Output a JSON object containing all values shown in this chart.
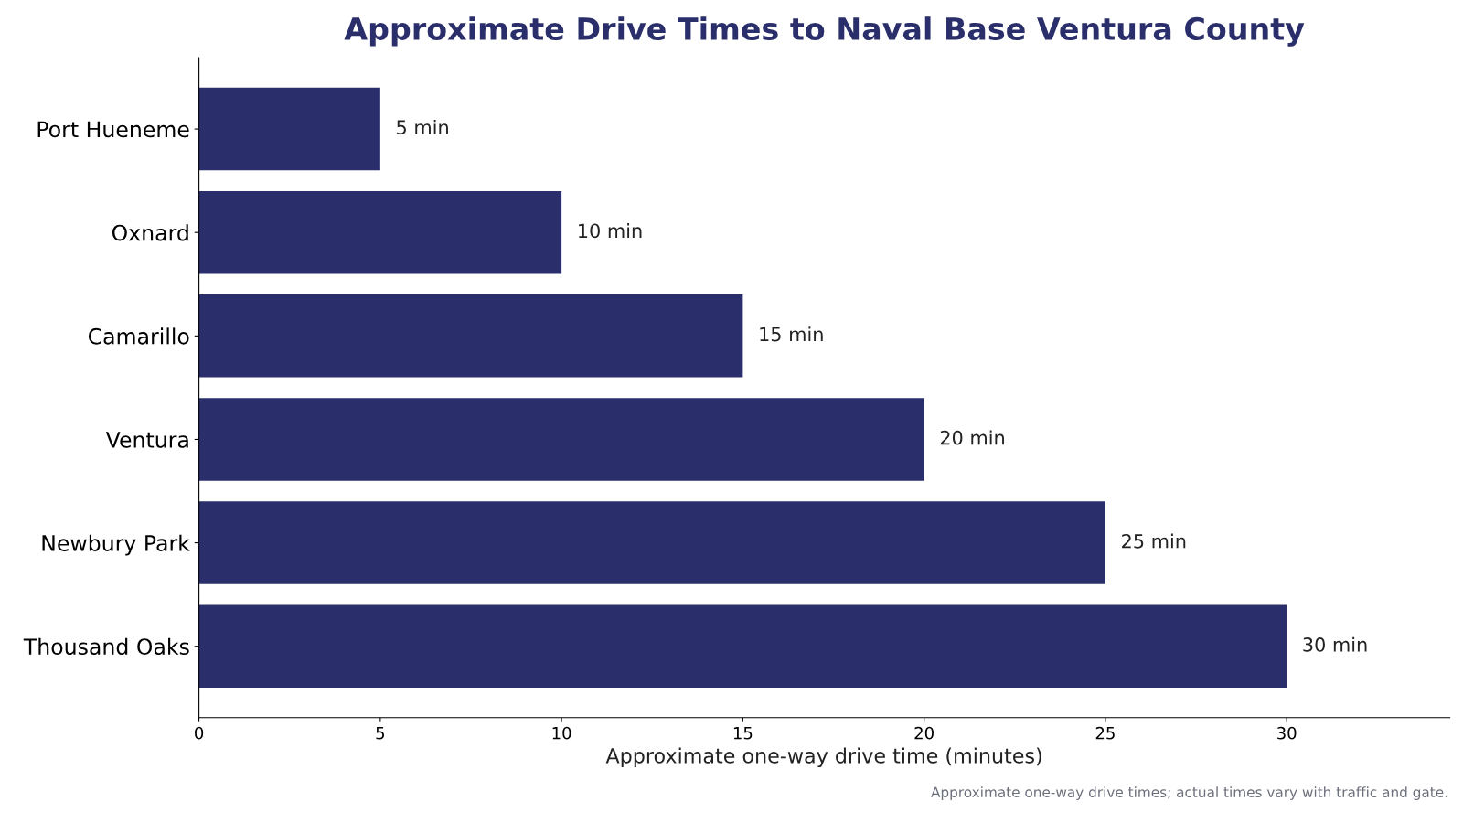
{
  "chart_data": {
    "type": "bar",
    "orientation": "horizontal",
    "title": "Approximate Drive Times to Naval Base Ventura County",
    "xlabel": "Approximate one-way drive time (minutes)",
    "categories": [
      "Port Hueneme",
      "Oxnard",
      "Camarillo",
      "Ventura",
      "Newbury Park",
      "Thousand Oaks"
    ],
    "values": [
      5,
      10,
      15,
      20,
      25,
      30
    ],
    "value_labels": [
      "5 min",
      "10 min",
      "15 min",
      "20 min",
      "25 min",
      "30 min"
    ],
    "color": "#2a2f6b",
    "xlim": [
      0,
      34.5
    ],
    "xticks": [
      0,
      5,
      10,
      15,
      20,
      25,
      30
    ],
    "grid": false,
    "annotations": [
      "Approximate one-way drive times; actual times vary with traffic and gate."
    ]
  }
}
